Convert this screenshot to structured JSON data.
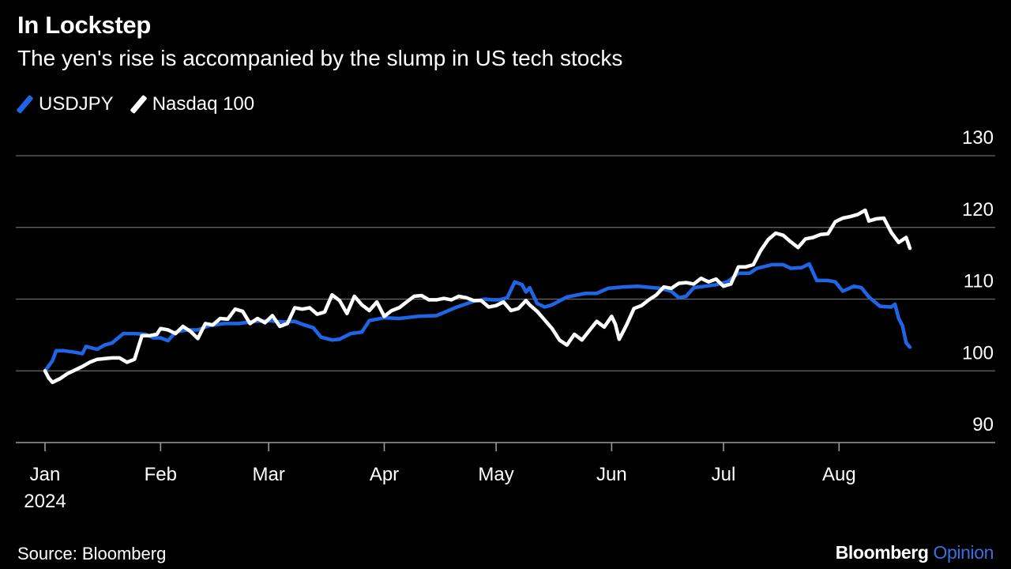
{
  "header": {
    "title": "In Lockstep",
    "subtitle": "The yen's rise is accompanied by the slump in US tech stocks"
  },
  "footer": {
    "source": "Source: Bloomberg",
    "brand_name": "Bloomberg",
    "brand_suffix": "Opinion"
  },
  "colors": {
    "usdjpy": "#1f66e6",
    "nasdaq": "#ffffff",
    "grid": "#6b6b6b",
    "brand_accent": "#3a6fe0"
  },
  "chart_data": {
    "type": "line",
    "title": "In Lockstep",
    "subtitle": "The yen's rise is accompanied by the slump in US tech stocks",
    "x_axis": {
      "type": "date",
      "range": [
        "2024-01-01",
        "2024-08-20"
      ],
      "ticks": [
        {
          "date": "2024-01-01",
          "label": "Jan",
          "sublabel": "2024"
        },
        {
          "date": "2024-02-01",
          "label": "Feb"
        },
        {
          "date": "2024-03-01",
          "label": "Mar"
        },
        {
          "date": "2024-04-01",
          "label": "Apr"
        },
        {
          "date": "2024-05-01",
          "label": "May"
        },
        {
          "date": "2024-06-01",
          "label": "Jun"
        },
        {
          "date": "2024-07-01",
          "label": "Jul"
        },
        {
          "date": "2024-08-01",
          "label": "Aug"
        }
      ]
    },
    "y_axis": {
      "position": "right",
      "ylim": [
        90,
        130
      ],
      "ticks": [
        90,
        100,
        110,
        120,
        130
      ]
    },
    "grid": true,
    "legend": "top-left",
    "series": [
      {
        "name": "USDJPY",
        "color": "#1f66e6",
        "points": [
          [
            "2024-01-01",
            100.0
          ],
          [
            "2024-01-03",
            101.4
          ],
          [
            "2024-01-04",
            102.8
          ],
          [
            "2024-01-06",
            102.8
          ],
          [
            "2024-01-09",
            102.6
          ],
          [
            "2024-01-11",
            102.4
          ],
          [
            "2024-01-12",
            103.4
          ],
          [
            "2024-01-15",
            103.0
          ],
          [
            "2024-01-17",
            103.6
          ],
          [
            "2024-01-19",
            103.9
          ],
          [
            "2024-01-22",
            105.2
          ],
          [
            "2024-01-25",
            105.2
          ],
          [
            "2024-01-28",
            105.1
          ],
          [
            "2024-01-30",
            104.6
          ],
          [
            "2024-02-01",
            104.6
          ],
          [
            "2024-02-03",
            104.2
          ],
          [
            "2024-02-05",
            105.4
          ],
          [
            "2024-02-08",
            105.7
          ],
          [
            "2024-02-11",
            105.7
          ],
          [
            "2024-02-14",
            106.3
          ],
          [
            "2024-02-18",
            106.6
          ],
          [
            "2024-02-22",
            106.6
          ],
          [
            "2024-02-26",
            106.9
          ],
          [
            "2024-03-01",
            107.0
          ],
          [
            "2024-03-05",
            106.8
          ],
          [
            "2024-03-08",
            106.9
          ],
          [
            "2024-03-10",
            106.5
          ],
          [
            "2024-03-13",
            106.0
          ],
          [
            "2024-03-15",
            104.7
          ],
          [
            "2024-03-18",
            104.3
          ],
          [
            "2024-03-20",
            104.4
          ],
          [
            "2024-03-23",
            105.2
          ],
          [
            "2024-03-26",
            105.4
          ],
          [
            "2024-03-28",
            107.0
          ],
          [
            "2024-04-01",
            107.4
          ],
          [
            "2024-04-05",
            107.3
          ],
          [
            "2024-04-10",
            107.6
          ],
          [
            "2024-04-15",
            107.7
          ],
          [
            "2024-04-20",
            108.8
          ],
          [
            "2024-04-25",
            109.7
          ],
          [
            "2024-04-28",
            110.0
          ],
          [
            "2024-04-30",
            109.9
          ],
          [
            "2024-05-02",
            109.9
          ],
          [
            "2024-05-04",
            110.2
          ],
          [
            "2024-05-06",
            112.4
          ],
          [
            "2024-05-08",
            112.0
          ],
          [
            "2024-05-09",
            111.0
          ],
          [
            "2024-05-10",
            111.6
          ],
          [
            "2024-05-12",
            109.4
          ],
          [
            "2024-05-14",
            108.9
          ],
          [
            "2024-05-16",
            109.2
          ],
          [
            "2024-05-20",
            110.3
          ],
          [
            "2024-05-25",
            110.8
          ],
          [
            "2024-05-28",
            110.8
          ],
          [
            "2024-05-31",
            111.5
          ],
          [
            "2024-06-04",
            111.7
          ],
          [
            "2024-06-08",
            111.8
          ],
          [
            "2024-06-12",
            111.6
          ],
          [
            "2024-06-14",
            111.5
          ],
          [
            "2024-06-17",
            111.1
          ],
          [
            "2024-06-19",
            110.2
          ],
          [
            "2024-06-21",
            110.4
          ],
          [
            "2024-06-23",
            111.6
          ],
          [
            "2024-06-26",
            111.8
          ],
          [
            "2024-06-29",
            112.0
          ],
          [
            "2024-07-02",
            112.4
          ],
          [
            "2024-07-05",
            113.6
          ],
          [
            "2024-07-08",
            113.6
          ],
          [
            "2024-07-10",
            114.3
          ],
          [
            "2024-07-14",
            114.8
          ],
          [
            "2024-07-17",
            114.8
          ],
          [
            "2024-07-19",
            114.3
          ],
          [
            "2024-07-22",
            114.4
          ],
          [
            "2024-07-24",
            114.9
          ],
          [
            "2024-07-26",
            112.6
          ],
          [
            "2024-07-29",
            112.6
          ],
          [
            "2024-07-31",
            112.4
          ],
          [
            "2024-08-02",
            111.1
          ],
          [
            "2024-08-05",
            111.8
          ],
          [
            "2024-08-07",
            111.6
          ],
          [
            "2024-08-09",
            110.3
          ],
          [
            "2024-08-12",
            109.0
          ],
          [
            "2024-08-15",
            108.9
          ],
          [
            "2024-08-16",
            109.3
          ],
          [
            "2024-08-17",
            107.3
          ],
          [
            "2024-08-18",
            106.3
          ],
          [
            "2024-08-19",
            103.9
          ],
          [
            "2024-08-20",
            103.3
          ]
        ]
      },
      {
        "name": "Nasdaq 100",
        "color": "#ffffff",
        "points": [
          [
            "2024-01-01",
            100.0
          ],
          [
            "2024-01-02",
            99.0
          ],
          [
            "2024-01-03",
            98.4
          ],
          [
            "2024-01-05",
            98.9
          ],
          [
            "2024-01-07",
            99.6
          ],
          [
            "2024-01-09",
            100.1
          ],
          [
            "2024-01-11",
            100.6
          ],
          [
            "2024-01-13",
            101.2
          ],
          [
            "2024-01-15",
            101.6
          ],
          [
            "2024-01-17",
            101.7
          ],
          [
            "2024-01-19",
            101.8
          ],
          [
            "2024-01-21",
            101.8
          ],
          [
            "2024-01-23",
            101.2
          ],
          [
            "2024-01-25",
            101.6
          ],
          [
            "2024-01-27",
            104.9
          ],
          [
            "2024-01-29",
            104.9
          ],
          [
            "2024-01-31",
            105.1
          ],
          [
            "2024-02-01",
            105.9
          ],
          [
            "2024-02-03",
            105.7
          ],
          [
            "2024-02-05",
            105.2
          ],
          [
            "2024-02-07",
            106.2
          ],
          [
            "2024-02-09",
            105.5
          ],
          [
            "2024-02-11",
            104.5
          ],
          [
            "2024-02-13",
            106.6
          ],
          [
            "2024-02-15",
            106.4
          ],
          [
            "2024-02-17",
            107.3
          ],
          [
            "2024-02-19",
            107.2
          ],
          [
            "2024-02-21",
            108.6
          ],
          [
            "2024-02-23",
            108.3
          ],
          [
            "2024-02-25",
            106.6
          ],
          [
            "2024-02-27",
            107.3
          ],
          [
            "2024-02-29",
            106.7
          ],
          [
            "2024-03-02",
            107.7
          ],
          [
            "2024-03-04",
            106.2
          ],
          [
            "2024-03-06",
            106.6
          ],
          [
            "2024-03-08",
            108.8
          ],
          [
            "2024-03-10",
            108.6
          ],
          [
            "2024-03-12",
            108.8
          ],
          [
            "2024-03-14",
            107.9
          ],
          [
            "2024-03-16",
            108.2
          ],
          [
            "2024-03-18",
            110.6
          ],
          [
            "2024-03-20",
            109.8
          ],
          [
            "2024-03-22",
            108.0
          ],
          [
            "2024-03-24",
            110.4
          ],
          [
            "2024-03-26",
            109.2
          ],
          [
            "2024-03-28",
            108.4
          ],
          [
            "2024-03-30",
            109.6
          ],
          [
            "2024-04-01",
            107.6
          ],
          [
            "2024-04-03",
            108.4
          ],
          [
            "2024-04-05",
            108.8
          ],
          [
            "2024-04-07",
            109.6
          ],
          [
            "2024-04-09",
            110.4
          ],
          [
            "2024-04-11",
            110.5
          ],
          [
            "2024-04-13",
            109.9
          ],
          [
            "2024-04-15",
            109.9
          ],
          [
            "2024-04-17",
            110.1
          ],
          [
            "2024-04-19",
            109.9
          ],
          [
            "2024-04-21",
            110.4
          ],
          [
            "2024-04-23",
            110.2
          ],
          [
            "2024-04-25",
            109.8
          ],
          [
            "2024-04-27",
            109.8
          ],
          [
            "2024-04-29",
            108.9
          ],
          [
            "2024-05-01",
            109.1
          ],
          [
            "2024-05-03",
            109.6
          ],
          [
            "2024-05-05",
            108.4
          ],
          [
            "2024-05-07",
            108.7
          ],
          [
            "2024-05-09",
            109.8
          ],
          [
            "2024-05-10",
            109.2
          ],
          [
            "2024-05-12",
            108.3
          ],
          [
            "2024-05-14",
            107.1
          ],
          [
            "2024-05-16",
            105.9
          ],
          [
            "2024-05-18",
            104.3
          ],
          [
            "2024-05-20",
            103.6
          ],
          [
            "2024-05-22",
            105.1
          ],
          [
            "2024-05-24",
            104.3
          ],
          [
            "2024-05-26",
            105.6
          ],
          [
            "2024-05-28",
            106.9
          ],
          [
            "2024-05-30",
            106.1
          ],
          [
            "2024-06-01",
            107.6
          ],
          [
            "2024-06-02",
            106.5
          ],
          [
            "2024-06-03",
            104.4
          ],
          [
            "2024-06-05",
            106.4
          ],
          [
            "2024-06-07",
            108.7
          ],
          [
            "2024-06-09",
            109.1
          ],
          [
            "2024-06-11",
            109.9
          ],
          [
            "2024-06-13",
            110.6
          ],
          [
            "2024-06-15",
            111.7
          ],
          [
            "2024-06-17",
            111.5
          ],
          [
            "2024-06-19",
            112.2
          ],
          [
            "2024-06-21",
            112.3
          ],
          [
            "2024-06-23",
            112.1
          ],
          [
            "2024-06-25",
            112.9
          ],
          [
            "2024-06-27",
            112.4
          ],
          [
            "2024-06-29",
            112.8
          ],
          [
            "2024-07-01",
            111.8
          ],
          [
            "2024-07-03",
            112.1
          ],
          [
            "2024-07-05",
            114.5
          ],
          [
            "2024-07-07",
            114.5
          ],
          [
            "2024-07-09",
            114.8
          ],
          [
            "2024-07-11",
            116.8
          ],
          [
            "2024-07-13",
            118.3
          ],
          [
            "2024-07-15",
            119.2
          ],
          [
            "2024-07-17",
            118.9
          ],
          [
            "2024-07-19",
            118.0
          ],
          [
            "2024-07-21",
            117.2
          ],
          [
            "2024-07-23",
            118.4
          ],
          [
            "2024-07-25",
            118.6
          ],
          [
            "2024-07-27",
            119.0
          ],
          [
            "2024-07-29",
            119.1
          ],
          [
            "2024-07-31",
            120.8
          ],
          [
            "2024-08-02",
            121.3
          ],
          [
            "2024-08-04",
            121.5
          ],
          [
            "2024-08-06",
            121.8
          ],
          [
            "2024-08-08",
            122.4
          ],
          [
            "2024-08-09",
            120.9
          ],
          [
            "2024-08-11",
            121.2
          ],
          [
            "2024-08-13",
            121.3
          ],
          [
            "2024-08-15",
            119.3
          ],
          [
            "2024-08-17",
            117.9
          ],
          [
            "2024-08-19",
            118.6
          ],
          [
            "2024-08-20",
            117.1
          ]
        ]
      }
    ]
  }
}
